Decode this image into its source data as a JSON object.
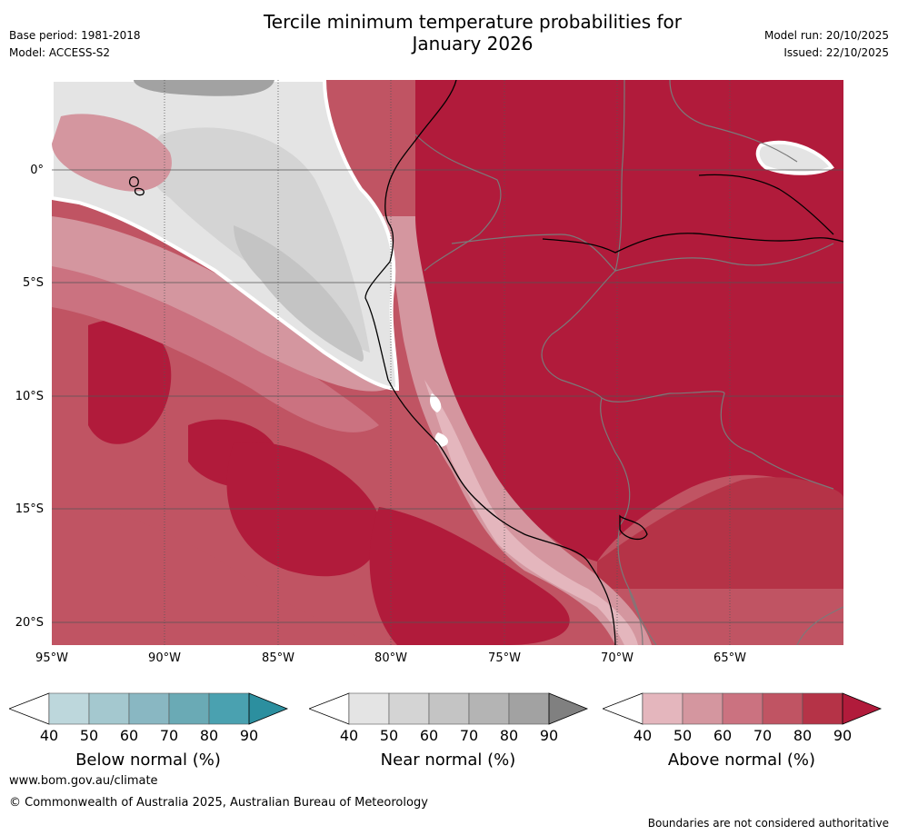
{
  "header": {
    "title_line1": "Tercile minimum temperature probabilities for",
    "title_line2": "January 2026",
    "base_period": "Base period: 1981-2018",
    "model": "Model: ACCESS-S2",
    "model_run": "Model run: 20/10/2025",
    "issued": "Issued: 22/10/2025"
  },
  "map": {
    "lat_labels": [
      "0°",
      "5°S",
      "10°S",
      "15°S",
      "20°S"
    ],
    "lon_labels": [
      "95°W",
      "90°W",
      "85°W",
      "80°W",
      "75°W",
      "70°W",
      "65°W"
    ]
  },
  "legends": [
    {
      "name": "below",
      "title": "Below normal (%)",
      "ticks": [
        "40",
        "50",
        "60",
        "70",
        "80",
        "90"
      ],
      "colors": [
        "#bdd7dc",
        "#a4c8cf",
        "#89b7c2",
        "#6aaab5",
        "#4aa1b0",
        "#2c8f9f"
      ]
    },
    {
      "name": "near",
      "title": "Near normal (%)",
      "ticks": [
        "40",
        "50",
        "60",
        "70",
        "80",
        "90"
      ],
      "colors": [
        "#e4e4e4",
        "#d4d4d4",
        "#c4c4c4",
        "#b4b4b4",
        "#a2a2a2",
        "#808080"
      ]
    },
    {
      "name": "above",
      "title": "Above normal (%)",
      "ticks": [
        "40",
        "50",
        "60",
        "70",
        "80",
        "90"
      ],
      "colors": [
        "#e4b6bd",
        "#d4969f",
        "#cb7280",
        "#c05463",
        "#b53347",
        "#b11b3b"
      ]
    }
  ],
  "footer": {
    "url": "www.bom.gov.au/climate",
    "copyright": "© Commonwealth of Australia 2025, Australian Bureau of Meteorology",
    "disclaimer": "Boundaries are not considered authoritative"
  }
}
